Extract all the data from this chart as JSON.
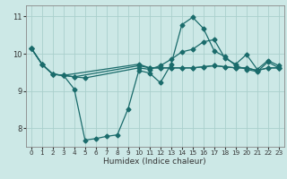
{
  "xlabel": "Humidex (Indice chaleur)",
  "bg_color": "#cce8e6",
  "grid_color": "#aacfcc",
  "line_color": "#1a6b6b",
  "xlim": [
    -0.5,
    23.5
  ],
  "ylim": [
    7.5,
    11.3
  ],
  "yticks": [
    8,
    9,
    10,
    11
  ],
  "xticks": [
    0,
    1,
    2,
    3,
    4,
    5,
    6,
    7,
    8,
    9,
    10,
    11,
    12,
    13,
    14,
    15,
    16,
    17,
    18,
    19,
    20,
    21,
    22,
    23
  ],
  "line1_x": [
    0,
    1,
    2,
    3,
    4,
    5,
    6,
    7,
    8,
    9,
    10,
    11,
    12,
    13,
    14,
    15,
    16,
    17,
    18,
    19,
    20,
    21,
    22,
    23
  ],
  "line1_y": [
    10.15,
    9.72,
    9.45,
    9.42,
    9.05,
    7.68,
    7.72,
    7.78,
    7.82,
    8.52,
    9.55,
    9.48,
    9.22,
    9.72,
    10.78,
    10.98,
    10.68,
    10.08,
    9.92,
    9.68,
    9.58,
    9.52,
    9.78,
    9.62
  ],
  "line2_x": [
    0,
    1,
    2,
    3,
    4,
    5,
    10,
    11,
    12,
    13,
    14,
    15,
    16,
    17,
    18,
    19,
    20,
    21,
    22,
    23
  ],
  "line2_y": [
    10.15,
    9.72,
    9.45,
    9.42,
    9.38,
    9.35,
    9.62,
    9.58,
    9.68,
    9.85,
    10.05,
    10.12,
    10.32,
    10.38,
    9.88,
    9.72,
    9.98,
    9.58,
    9.82,
    9.68
  ],
  "line3_x": [
    0,
    1,
    2,
    3,
    4,
    10,
    11,
    12,
    13,
    14,
    15,
    16,
    17,
    18,
    19,
    20,
    21,
    22,
    23
  ],
  "line3_y": [
    10.15,
    9.72,
    9.45,
    9.42,
    9.38,
    9.68,
    9.62,
    9.62,
    9.62,
    9.62,
    9.62,
    9.65,
    9.68,
    9.65,
    9.62,
    9.62,
    9.55,
    9.62,
    9.62
  ],
  "line4_x": [
    0,
    1,
    2,
    3,
    10,
    11,
    12,
    13,
    14,
    15,
    16,
    17,
    18,
    19,
    20,
    21,
    22,
    23
  ],
  "line4_y": [
    10.15,
    9.72,
    9.45,
    9.42,
    9.72,
    9.62,
    9.62,
    9.62,
    9.62,
    9.62,
    9.65,
    9.68,
    9.65,
    9.62,
    9.62,
    9.55,
    9.62,
    9.62
  ],
  "marker_size": 2.5,
  "line_width": 0.9
}
